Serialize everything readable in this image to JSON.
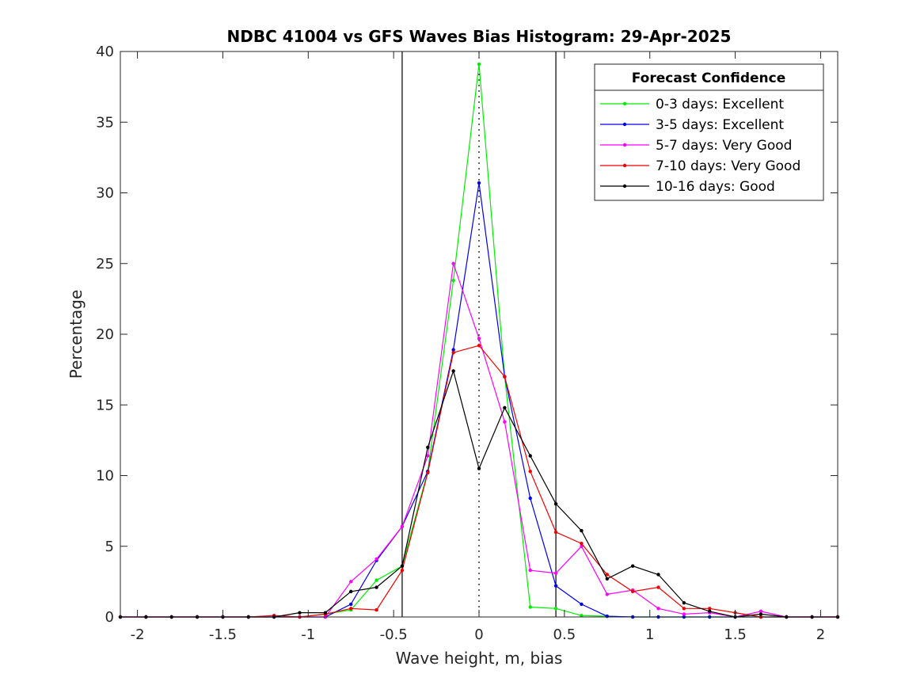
{
  "chart_data": {
    "type": "line",
    "title": "NDBC 41004 vs GFS Waves Bias Histogram: 29-Apr-2025",
    "xlabel": "Wave height, m, bias",
    "ylabel": "Percentage",
    "xlim": [
      -2.1,
      2.1
    ],
    "ylim": [
      0,
      40
    ],
    "xticks": [
      -2,
      -1.5,
      -1,
      -0.5,
      0,
      0.5,
      1,
      1.5,
      2
    ],
    "xtick_labels": [
      "-2",
      "-1.5",
      "-1",
      "-0.5",
      "0",
      "0.5",
      "1",
      "1.5",
      "2"
    ],
    "yticks": [
      0,
      5,
      10,
      15,
      20,
      25,
      30,
      35,
      40
    ],
    "ytick_labels": [
      "0",
      "5",
      "10",
      "15",
      "20",
      "25",
      "30",
      "35",
      "40"
    ],
    "reference_lines": [
      {
        "x": -0.45,
        "style": "solid"
      },
      {
        "x": 0.45,
        "style": "solid"
      },
      {
        "x": 0,
        "style": "dotted"
      }
    ],
    "legend": {
      "title": "Forecast Confidence",
      "placement": "top-right"
    },
    "x": [
      -2.1,
      -1.95,
      -1.8,
      -1.65,
      -1.5,
      -1.35,
      -1.2,
      -1.05,
      -0.9,
      -0.75,
      -0.6,
      -0.45,
      -0.3,
      -0.15,
      0,
      0.15,
      0.3,
      0.45,
      0.6,
      0.75,
      0.9,
      1.05,
      1.2,
      1.35,
      1.5,
      1.65,
      1.8,
      1.95,
      2.1
    ],
    "series": [
      {
        "name": "0-3 days: Excellent",
        "color": "#00ee00",
        "values": [
          0,
          0,
          0,
          0,
          0,
          0,
          0,
          0,
          0.2,
          0.5,
          2.6,
          3.6,
          10.3,
          23.8,
          39.1,
          17.0,
          0.7,
          0.6,
          0.1,
          0.05,
          0,
          0,
          0,
          0,
          0,
          0,
          0,
          0,
          0
        ]
      },
      {
        "name": "3-5 days: Excellent",
        "color": "#0000ee",
        "values": [
          0,
          0,
          0,
          0,
          0,
          0,
          0,
          0,
          0,
          0.9,
          4.0,
          6.4,
          10.3,
          18.9,
          30.7,
          17.0,
          8.4,
          2.2,
          0.9,
          0.05,
          0,
          0,
          0,
          0,
          0,
          0,
          0,
          0,
          0
        ]
      },
      {
        "name": "5-7 days: Very Good",
        "color": "#ff00ff",
        "values": [
          0,
          0,
          0,
          0,
          0,
          0,
          0,
          0,
          0,
          2.5,
          4.1,
          6.4,
          11.4,
          25.0,
          19.7,
          13.8,
          3.3,
          3.1,
          5.0,
          1.6,
          1.9,
          0.6,
          0.2,
          0.3,
          0,
          0.4,
          0,
          0,
          0
        ]
      },
      {
        "name": "7-10 days: Very Good",
        "color": "#ee0000",
        "values": [
          0,
          0,
          0,
          0,
          0,
          0,
          0.1,
          0,
          0.2,
          0.6,
          0.5,
          3.3,
          10.2,
          18.7,
          19.2,
          17.0,
          10.3,
          6.0,
          5.2,
          3.0,
          1.8,
          2.1,
          0.6,
          0.6,
          0.3,
          0,
          0,
          0,
          0
        ]
      },
      {
        "name": "10-16 days: Good",
        "color": "#000000",
        "values": [
          0,
          0,
          0,
          0,
          0,
          0,
          0,
          0.3,
          0.3,
          1.8,
          2.1,
          3.6,
          12.0,
          17.4,
          10.5,
          14.8,
          11.4,
          8.0,
          6.1,
          2.7,
          3.6,
          3.0,
          1.0,
          0.4,
          0,
          0.2,
          0,
          0,
          0
        ]
      }
    ]
  }
}
